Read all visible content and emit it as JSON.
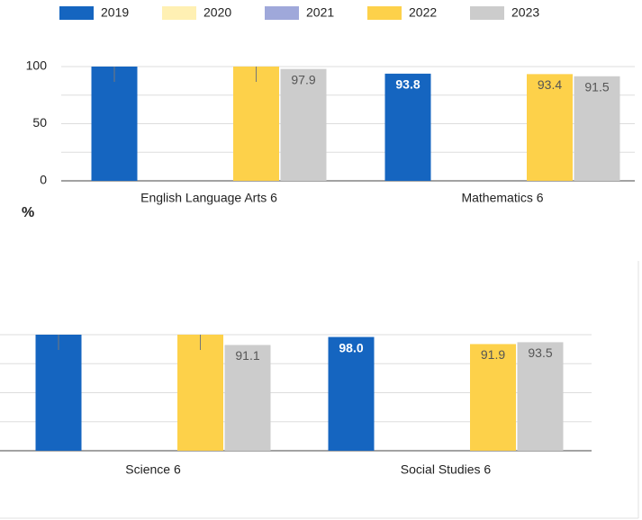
{
  "chart_data": [
    {
      "type": "bar",
      "categories": [
        "English Language Arts 6",
        "Mathematics 6"
      ],
      "series": [
        {
          "name": "2019",
          "color": "#1565c0",
          "values": [
            100,
            93.8
          ],
          "value_labels": [
            null,
            "93.8"
          ]
        },
        {
          "name": "2020",
          "color": "#fff0b3",
          "values": [
            null,
            null
          ]
        },
        {
          "name": "2021",
          "color": "#9fa8da",
          "values": [
            null,
            null
          ]
        },
        {
          "name": "2022",
          "color": "#fdd14a",
          "values": [
            100,
            93.4
          ],
          "value_labels": [
            null,
            "93.4"
          ]
        },
        {
          "name": "2023",
          "color": "#cccccc",
          "values": [
            97.9,
            91.5
          ],
          "value_labels": [
            "97.9",
            "91.5"
          ]
        }
      ],
      "y_label": "%",
      "ylim": [
        0,
        100
      ],
      "yticks": [
        0,
        50,
        100
      ],
      "gridlines": [
        0,
        25,
        50,
        75,
        100
      ]
    },
    {
      "type": "bar",
      "categories": [
        "Science 6",
        "Social Studies 6"
      ],
      "series": [
        {
          "values": [
            100,
            98.0
          ],
          "value_labels": [
            null,
            "98.0"
          ]
        },
        {
          "values": [
            null,
            null
          ]
        },
        {
          "values": [
            null,
            null
          ]
        },
        {
          "values": [
            100,
            91.9
          ],
          "value_labels": [
            null,
            "91.9"
          ]
        },
        {
          "values": [
            91.1,
            93.5
          ],
          "value_labels": [
            "91.1",
            "93.5"
          ]
        }
      ],
      "ylim": [
        0,
        100
      ],
      "gridlines": [
        0,
        25,
        50,
        75,
        100
      ]
    }
  ]
}
